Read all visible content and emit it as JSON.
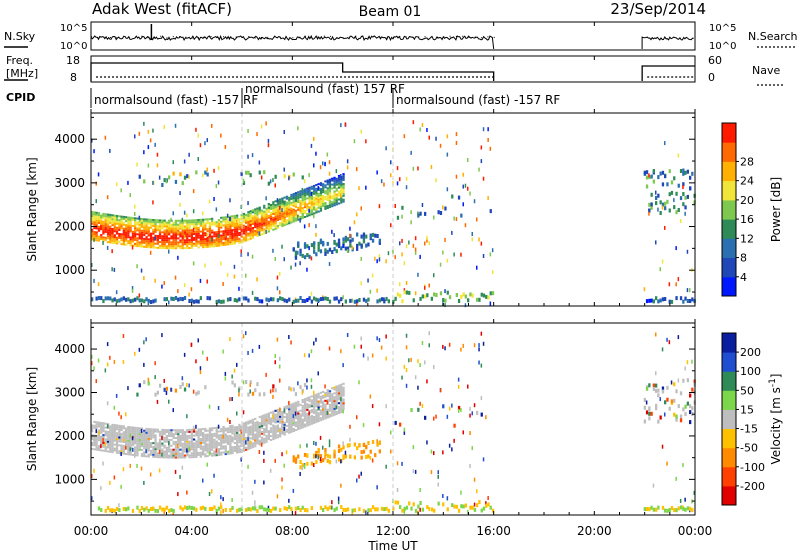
{
  "header": {
    "station": "Adak West (fitACF)",
    "beam": "Beam 01",
    "date": "23/Sep/2014"
  },
  "panel_labels": {
    "nsky": "N.Sky",
    "nsearch": "N.Search",
    "freq_line1": "Freq.",
    "freq_line2": "[MHz]",
    "nave": "Nave",
    "cpid": "CPID"
  },
  "small_axes": {
    "noise_ticks_left": [
      "10^5",
      "10^0"
    ],
    "noise_ticks_right": [
      "10^5",
      "10^0"
    ],
    "freq_ticks_left": [
      "18",
      "8"
    ],
    "nave_ticks_right": [
      "60",
      "0"
    ]
  },
  "cpid_segments": [
    {
      "label": "normalsound (fast) -157 RF",
      "start_h": 0.0,
      "end_h": 6.0
    },
    {
      "label": "normalsound (fast) 157 RF",
      "start_h": 6.0,
      "end_h": 12.0
    },
    {
      "label": "normalsound (fast) -157 RF",
      "start_h": 12.0,
      "end_h": 24.0
    }
  ],
  "chart_data": [
    {
      "type": "heatmap",
      "name": "power",
      "ylabel": "Slant Range [km]",
      "yticks": [
        "1000",
        "2000",
        "3000",
        "4000"
      ],
      "ylim": [
        180,
        4600
      ],
      "xlim": [
        0,
        24
      ],
      "colorbar": {
        "label": "Power [dB]",
        "ticks": [
          "4",
          "8",
          "12",
          "16",
          "20",
          "24",
          "28"
        ],
        "range": [
          0,
          32
        ],
        "colors": [
          "#0018ff",
          "#1f47b8",
          "#2a6fb0",
          "#2e8b57",
          "#7ec850",
          "#f2e53a",
          "#ffb000",
          "#ff6a00",
          "#ff1a00"
        ]
      },
      "data_gap_hours": [
        16.0,
        21.9
      ]
    },
    {
      "type": "heatmap",
      "name": "velocity",
      "ylabel": "Slant Range [km]",
      "yticks": [
        "1000",
        "2000",
        "3000",
        "4000"
      ],
      "ylim": [
        180,
        4600
      ],
      "xlim": [
        0,
        24
      ],
      "colorbar": {
        "label": "Velocity [m s",
        "label_sup": "-1",
        "ticks": [
          "-200",
          "-100",
          "-50",
          "-15",
          "15",
          "50",
          "100",
          "200"
        ],
        "colors": [
          "#e00000",
          "#ff4000",
          "#ff8a00",
          "#ffc000",
          "#bebebe",
          "#7cd64a",
          "#2e8b57",
          "#1f4fd0",
          "#0a1fa0"
        ]
      },
      "data_gap_hours": [
        16.0,
        21.9
      ]
    }
  ],
  "time_axis": {
    "ticks": [
      "00:00",
      "04:00",
      "08:00",
      "12:00",
      "16:00",
      "20:00",
      "00:00"
    ],
    "label": "Time UT"
  }
}
